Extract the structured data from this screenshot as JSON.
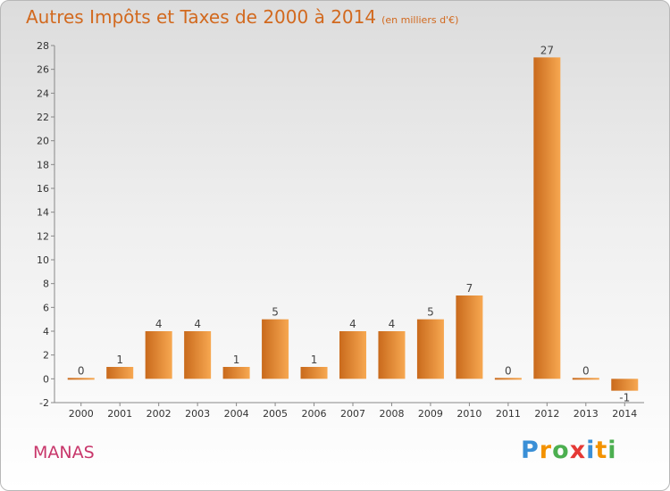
{
  "header": {
    "title": "Autres Impôts et Taxes de 2000 à 2014",
    "subtitle": "(en milliers d'€)"
  },
  "commune": "MANAS",
  "logo": {
    "text": "Proxiti",
    "letters": [
      "P",
      "r",
      "o",
      "x",
      "i",
      "t",
      "i"
    ],
    "colors": [
      "#3a8fd6",
      "#f39200",
      "#4caf50",
      "#e53935",
      "#3a8fd6",
      "#f39200",
      "#4caf50"
    ]
  },
  "colors": {
    "accent": "#d2691e",
    "commune": "#c8366a",
    "bar_dark": "#c96a1c",
    "bar_light": "#f7a851"
  },
  "chart_data": {
    "type": "bar",
    "title": "Autres Impôts et Taxes de 2000 à 2014",
    "subtitle": "(en milliers d'€)",
    "categories": [
      "2000",
      "2001",
      "2002",
      "2003",
      "2004",
      "2005",
      "2006",
      "2007",
      "2008",
      "2009",
      "2010",
      "2011",
      "2012",
      "2013",
      "2014"
    ],
    "values": [
      0,
      1,
      4,
      4,
      1,
      5,
      1,
      4,
      4,
      5,
      7,
      0,
      27,
      0,
      -1
    ],
    "value_labels": [
      "0",
      "1",
      "4",
      "4",
      "1",
      "5",
      "1",
      "4",
      "4",
      "5",
      "7",
      "0",
      "27",
      "0",
      "-1"
    ],
    "yticks": [
      -2,
      0,
      2,
      4,
      6,
      8,
      10,
      12,
      14,
      16,
      18,
      20,
      22,
      24,
      26,
      28
    ],
    "ylim": [
      -2,
      28
    ],
    "grid": "none",
    "legend": "none"
  }
}
